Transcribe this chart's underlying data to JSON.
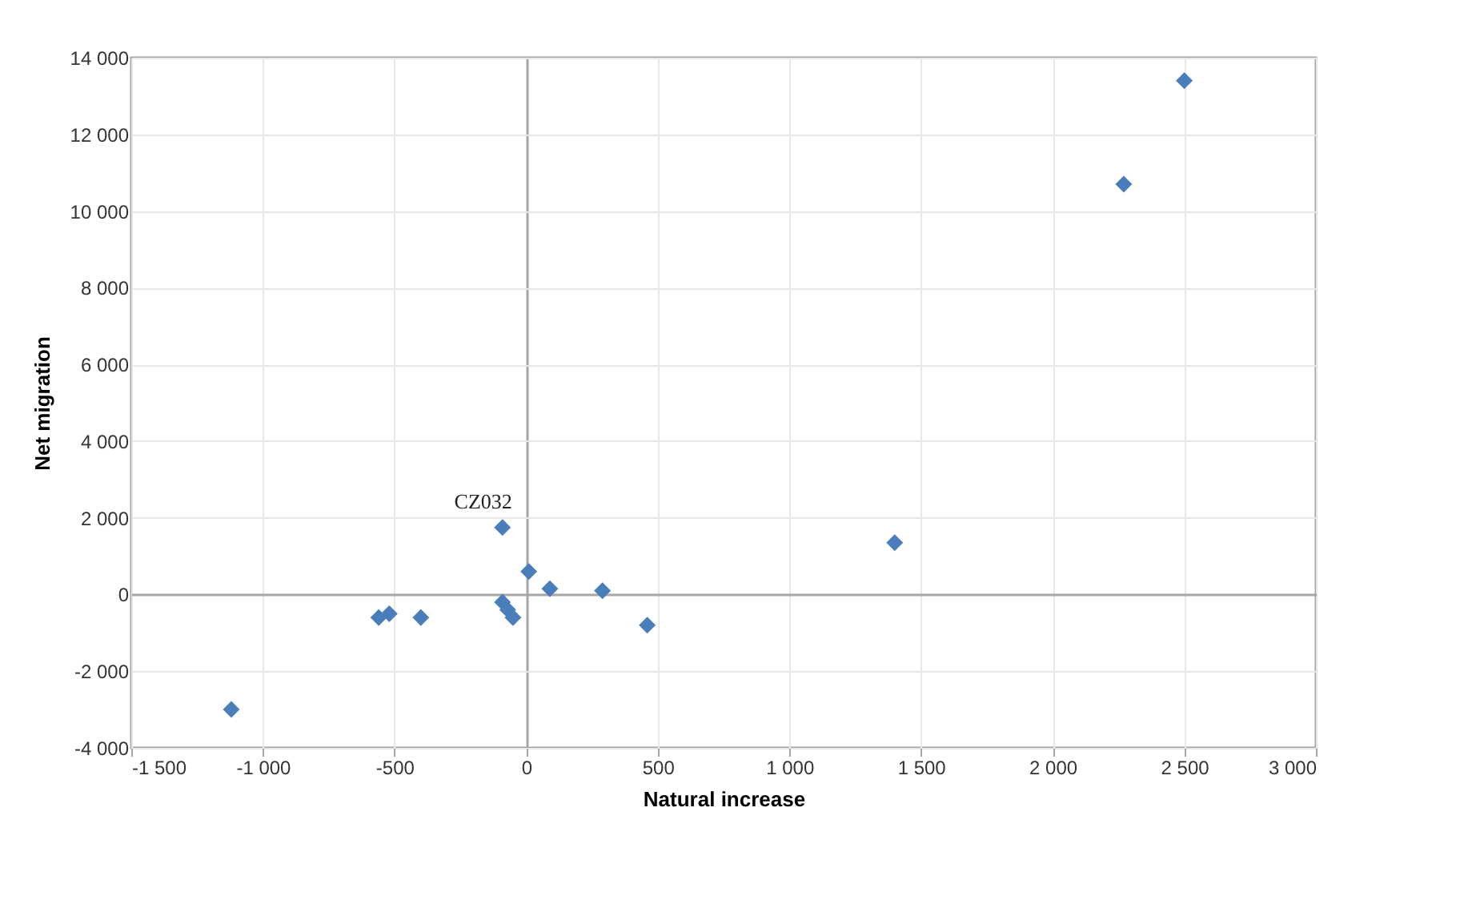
{
  "chart_data": {
    "type": "scatter",
    "xlabel": "Natural increase",
    "ylabel": "Net migration",
    "xlim": [
      -1500,
      3000
    ],
    "xticks": [
      {
        "value": -1500,
        "label": "-1 500"
      },
      {
        "value": -1000,
        "label": "-1 000"
      },
      -500,
      0,
      500,
      {
        "value": 1000,
        "label": "1 000"
      },
      {
        "value": 1500,
        "label": "1 500"
      },
      {
        "value": 2000,
        "label": "2 000"
      },
      {
        "value": 2500,
        "label": "2 500"
      },
      {
        "value": 3000,
        "label": "3 000"
      }
    ],
    "ylim": [
      -4000,
      14000
    ],
    "yticks": [
      {
        "value": -4000,
        "label": "-4 000"
      },
      {
        "value": -2000,
        "label": "-2 000"
      },
      0,
      {
        "value": 2000,
        "label": "2 000"
      },
      {
        "value": 4000,
        "label": "4 000"
      },
      {
        "value": 6000,
        "label": "6 000"
      },
      {
        "value": 8000,
        "label": "8 000"
      },
      {
        "value": 10000,
        "label": "10 000"
      },
      {
        "value": 12000,
        "label": "12 000"
      },
      {
        "value": 14000,
        "label": "14 000"
      }
    ],
    "grid": true,
    "marker": "diamond",
    "series": [
      {
        "color": "#4a7ebb",
        "x": [
          2500,
          2270,
          1400,
          460,
          290,
          90,
          10,
          -90,
          -90,
          -70,
          -50,
          -400,
          -520,
          -560,
          -1120
        ],
        "values": [
          13400,
          10700,
          1350,
          -800,
          100,
          150,
          600,
          1750,
          -200,
          -400,
          -600,
          -600,
          -500,
          -600,
          -3000
        ]
      }
    ],
    "annotations": [
      {
        "text": "CZ032",
        "x": -90,
        "y": 1750
      }
    ]
  }
}
